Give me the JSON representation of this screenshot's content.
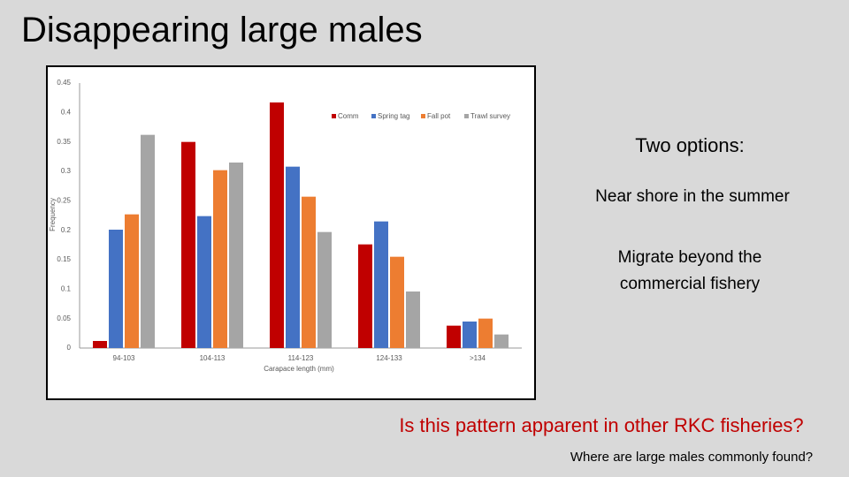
{
  "slide_title": "Disappearing large males",
  "chart_data": {
    "type": "bar",
    "categories": [
      "94-103",
      "104-113",
      "114-123",
      "124-133",
      ">134"
    ],
    "series": [
      {
        "name": "Comm",
        "color": "#c00000",
        "values": [
          0.012,
          0.35,
          0.417,
          0.176,
          0.038
        ]
      },
      {
        "name": "Spring tag",
        "color": "#4472c4",
        "values": [
          0.201,
          0.224,
          0.308,
          0.215,
          0.045
        ]
      },
      {
        "name": "Fall pot",
        "color": "#ed7d31",
        "values": [
          0.227,
          0.302,
          0.257,
          0.155,
          0.05
        ]
      },
      {
        "name": "Trawl survey",
        "color": "#a5a5a5",
        "values": [
          0.362,
          0.315,
          0.197,
          0.096,
          0.023
        ]
      }
    ],
    "ylim": [
      0,
      0.45
    ],
    "yticks": [
      0,
      0.05,
      0.1,
      0.15,
      0.2,
      0.25,
      0.3,
      0.35,
      0.4,
      0.45
    ],
    "x_label": "Carapace length (mm)",
    "y_label": "Frequency",
    "grid": false
  },
  "options_heading": "Two options:",
  "options": [
    "Near shore in the summer",
    "Migrate beyond the commercial fishery"
  ],
  "question": "Is this pattern apparent in other RKC fisheries?",
  "sub_question": "Where are large males commonly found?"
}
